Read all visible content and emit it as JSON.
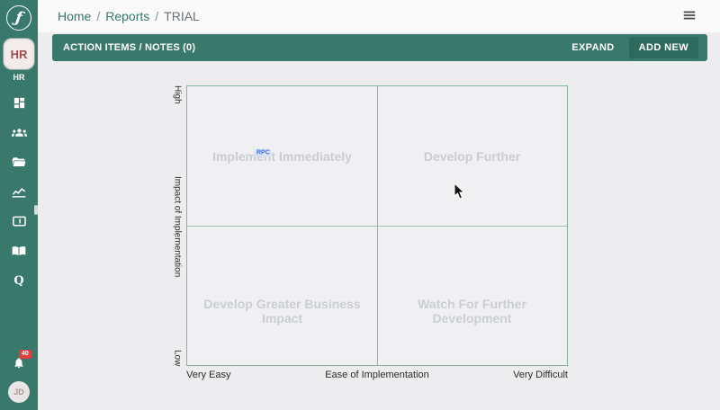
{
  "colors": {
    "teal": "#38796b",
    "teal_dark_button": "#2e6a5c",
    "header_bg": "#fafafa",
    "content_bg": "#edecef",
    "chart_line": "#87b2a3",
    "quadrant_text": "#c9cdd4",
    "workspace_text": "#9d4b4b",
    "notification_red": "#e33e3e",
    "point_blue": "#3e6fd8"
  },
  "sidebar": {
    "logo_icon": "runner-logo-icon",
    "workspace_badge": "HR",
    "workspace_label": "HR",
    "nav_icons": [
      "dashboard-icon",
      "groups-icon",
      "folder-open-icon",
      "chart-line-icon",
      "reader-card-icon",
      "book-open-icon",
      "q-icon"
    ],
    "notification_count": "40",
    "avatar_initials": "JD"
  },
  "header": {
    "breadcrumb": [
      "Home",
      "Reports",
      "TRIAL"
    ],
    "separator": "/",
    "menu_icon": "hamburger-menu-icon"
  },
  "action_bar": {
    "title": "ACTION ITEMS / NOTES (0)",
    "expand_label": "EXPAND",
    "add_new_label": "ADD NEW"
  },
  "chart_data": {
    "type": "scatter",
    "variant": "quadrant-matrix",
    "title": "",
    "xlabel": "Ease of Implementation",
    "ylabel": "Impact of Implementation",
    "x_tick_labels": [
      "Very Easy",
      "Very Difficult"
    ],
    "y_tick_labels": [
      "Low",
      "High"
    ],
    "xlim": [
      0,
      1
    ],
    "ylim": [
      0,
      1
    ],
    "grid": "quadrant midlines only",
    "quadrants": {
      "top_left": "Implement Immediately",
      "top_right": "Develop Further",
      "bottom_left": "Develop Greater Business Impact",
      "bottom_right": "Watch For Further Development"
    },
    "points": [
      {
        "label": "RPC",
        "x": 0.2,
        "y": 0.76
      }
    ]
  }
}
